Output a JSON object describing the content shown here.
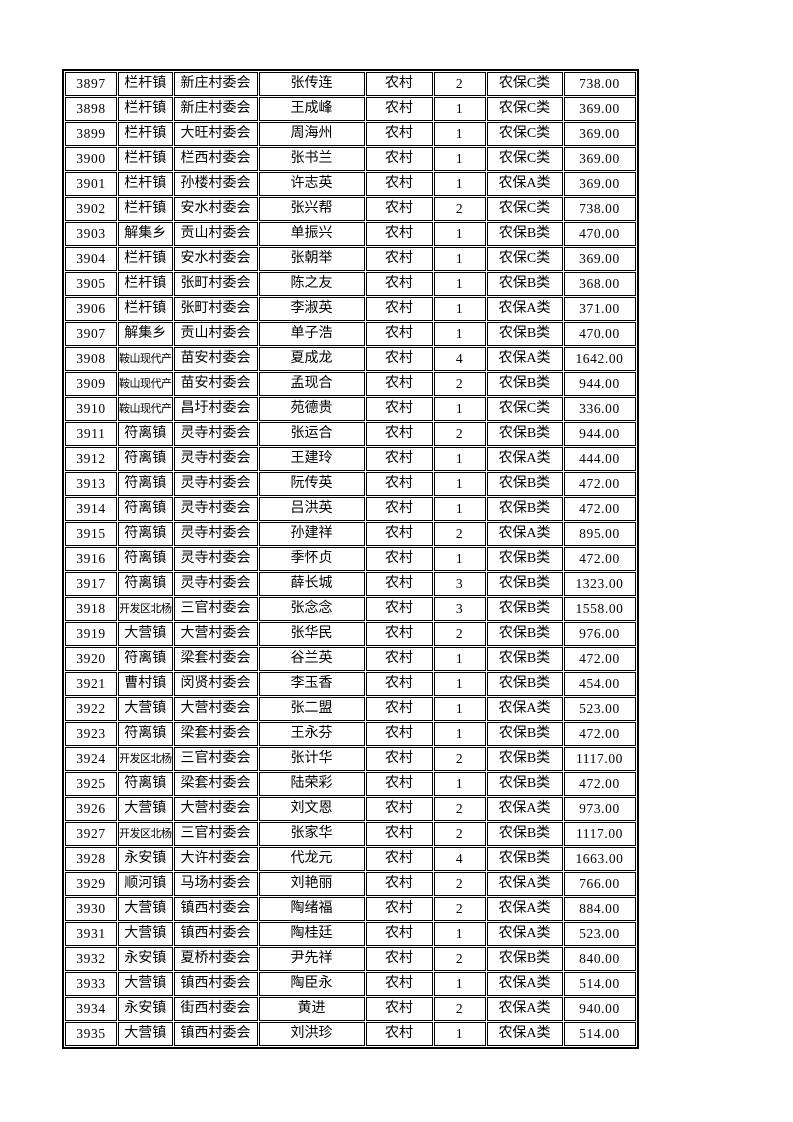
{
  "page": {
    "background_color": "#ffffff",
    "border_color": "#000000",
    "text_color": "#000000"
  },
  "table": {
    "column_keys": [
      "row_id",
      "town",
      "village_committee",
      "person_name",
      "residence_type",
      "person_count",
      "insurance_category",
      "amount"
    ],
    "rows": [
      [
        "3897",
        "栏杆镇",
        "新庄村委会",
        "张传连",
        "农村",
        "2",
        "农保C类",
        "738.00"
      ],
      [
        "3898",
        "栏杆镇",
        "新庄村委会",
        "王成峰",
        "农村",
        "1",
        "农保C类",
        "369.00"
      ],
      [
        "3899",
        "栏杆镇",
        "大旺村委会",
        "周海州",
        "农村",
        "1",
        "农保C类",
        "369.00"
      ],
      [
        "3900",
        "栏杆镇",
        "栏西村委会",
        "张书兰",
        "农村",
        "1",
        "农保C类",
        "369.00"
      ],
      [
        "3901",
        "栏杆镇",
        "孙楼村委会",
        "许志英",
        "农村",
        "1",
        "农保A类",
        "369.00"
      ],
      [
        "3902",
        "栏杆镇",
        "安水村委会",
        "张兴帮",
        "农村",
        "2",
        "农保C类",
        "738.00"
      ],
      [
        "3903",
        "解集乡",
        "贡山村委会",
        "单振兴",
        "农村",
        "1",
        "农保B类",
        "470.00"
      ],
      [
        "3904",
        "栏杆镇",
        "安水村委会",
        "张朝举",
        "农村",
        "1",
        "农保C类",
        "369.00"
      ],
      [
        "3905",
        "栏杆镇",
        "张町村委会",
        "陈之友",
        "农村",
        "1",
        "农保B类",
        "368.00"
      ],
      [
        "3906",
        "栏杆镇",
        "张町村委会",
        "李淑英",
        "农村",
        "1",
        "农保A类",
        "371.00"
      ],
      [
        "3907",
        "解集乡",
        "贡山村委会",
        "单子浩",
        "农村",
        "1",
        "农保B类",
        "470.00"
      ],
      [
        "3908",
        "鞍山现代产",
        "苗安村委会",
        "夏成龙",
        "农村",
        "4",
        "农保A类",
        "1642.00"
      ],
      [
        "3909",
        "鞍山现代产",
        "苗安村委会",
        "孟现合",
        "农村",
        "2",
        "农保B类",
        "944.00"
      ],
      [
        "3910",
        "鞍山现代产",
        "昌圩村委会",
        "苑德贵",
        "农村",
        "1",
        "农保C类",
        "336.00"
      ],
      [
        "3911",
        "符离镇",
        "灵寺村委会",
        "张运合",
        "农村",
        "2",
        "农保B类",
        "944.00"
      ],
      [
        "3912",
        "符离镇",
        "灵寺村委会",
        "王建玲",
        "农村",
        "1",
        "农保A类",
        "444.00"
      ],
      [
        "3913",
        "符离镇",
        "灵寺村委会",
        "阮传英",
        "农村",
        "1",
        "农保B类",
        "472.00"
      ],
      [
        "3914",
        "符离镇",
        "灵寺村委会",
        "吕洪英",
        "农村",
        "1",
        "农保B类",
        "472.00"
      ],
      [
        "3915",
        "符离镇",
        "灵寺村委会",
        "孙建祥",
        "农村",
        "2",
        "农保A类",
        "895.00"
      ],
      [
        "3916",
        "符离镇",
        "灵寺村委会",
        "季怀贞",
        "农村",
        "1",
        "农保B类",
        "472.00"
      ],
      [
        "3917",
        "符离镇",
        "灵寺村委会",
        "薛长城",
        "农村",
        "3",
        "农保B类",
        "1323.00"
      ],
      [
        "3918",
        "开发区北杨",
        "三官村委会",
        "张念念",
        "农村",
        "3",
        "农保B类",
        "1558.00"
      ],
      [
        "3919",
        "大营镇",
        "大营村委会",
        "张华民",
        "农村",
        "2",
        "农保B类",
        "976.00"
      ],
      [
        "3920",
        "符离镇",
        "梁套村委会",
        "谷兰英",
        "农村",
        "1",
        "农保B类",
        "472.00"
      ],
      [
        "3921",
        "曹村镇",
        "闵贤村委会",
        "李玉香",
        "农村",
        "1",
        "农保B类",
        "454.00"
      ],
      [
        "3922",
        "大营镇",
        "大营村委会",
        "张二盟",
        "农村",
        "1",
        "农保A类",
        "523.00"
      ],
      [
        "3923",
        "符离镇",
        "梁套村委会",
        "王永芬",
        "农村",
        "1",
        "农保B类",
        "472.00"
      ],
      [
        "3924",
        "开发区北杨",
        "三官村委会",
        "张计华",
        "农村",
        "2",
        "农保B类",
        "1117.00"
      ],
      [
        "3925",
        "符离镇",
        "梁套村委会",
        "陆荣彩",
        "农村",
        "1",
        "农保B类",
        "472.00"
      ],
      [
        "3926",
        "大营镇",
        "大营村委会",
        "刘文恩",
        "农村",
        "2",
        "农保A类",
        "973.00"
      ],
      [
        "3927",
        "开发区北杨",
        "三官村委会",
        "张家华",
        "农村",
        "2",
        "农保B类",
        "1117.00"
      ],
      [
        "3928",
        "永安镇",
        "大许村委会",
        "代龙元",
        "农村",
        "4",
        "农保B类",
        "1663.00"
      ],
      [
        "3929",
        "顺河镇",
        "马场村委会",
        "刘艳丽",
        "农村",
        "2",
        "农保A类",
        "766.00"
      ],
      [
        "3930",
        "大营镇",
        "镇西村委会",
        "陶绪福",
        "农村",
        "2",
        "农保A类",
        "884.00"
      ],
      [
        "3931",
        "大营镇",
        "镇西村委会",
        "陶桂廷",
        "农村",
        "1",
        "农保A类",
        "523.00"
      ],
      [
        "3932",
        "永安镇",
        "夏桥村委会",
        "尹先祥",
        "农村",
        "2",
        "农保B类",
        "840.00"
      ],
      [
        "3933",
        "大营镇",
        "镇西村委会",
        "陶臣永",
        "农村",
        "1",
        "农保A类",
        "514.00"
      ],
      [
        "3934",
        "永安镇",
        "街西村委会",
        "黄进",
        "农村",
        "2",
        "农保A类",
        "940.00"
      ],
      [
        "3935",
        "大营镇",
        "镇西村委会",
        "刘洪珍",
        "农村",
        "1",
        "农保A类",
        "514.00"
      ]
    ]
  }
}
